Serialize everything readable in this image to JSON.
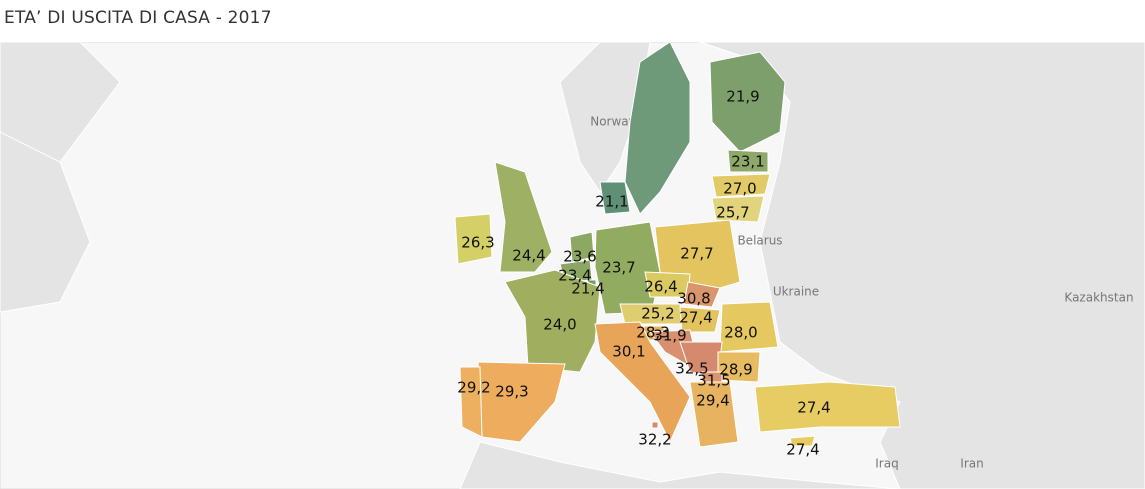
{
  "title": "ETA’ DI USCITA DI CASA - 2017",
  "places": [
    "Norway",
    "Belarus",
    "Ukraine",
    "Kazakhstan",
    "Iraq",
    "Iran"
  ],
  "regions": [
    {
      "label": "21,9",
      "color": "#7c9f6c"
    },
    {
      "label": "21,1",
      "color": "#5f8f74"
    },
    {
      "label": "23,1",
      "color": "#8ea86a"
    },
    {
      "label": "27,0",
      "color": "#e2cb66"
    },
    {
      "label": "25,7",
      "color": "#e1d47c"
    },
    {
      "label": "26,3",
      "color": "#d5cf68"
    },
    {
      "label": "24,4",
      "color": "#9db064"
    },
    {
      "label": "23,6",
      "color": "#8da862"
    },
    {
      "label": "23,4",
      "color": "#8aa662"
    },
    {
      "label": "21,4",
      "color": "#6f9a6c"
    },
    {
      "label": "23,7",
      "color": "#91ab60"
    },
    {
      "label": "27,7",
      "color": "#e3c45e"
    },
    {
      "label": "26,4",
      "color": "#dbca62"
    },
    {
      "label": "30,8",
      "color": "#d9956b"
    },
    {
      "label": "25,2",
      "color": "#dfcd70"
    },
    {
      "label": "27,4",
      "color": "#e3c35e"
    },
    {
      "label": "28,3",
      "color": "#e5b35f"
    },
    {
      "label": "31,9",
      "color": "#d8906e"
    },
    {
      "label": "24,0",
      "color": "#9fae5f"
    },
    {
      "label": "30,1",
      "color": "#e8a55a"
    },
    {
      "label": "28,0",
      "color": "#e6c860"
    },
    {
      "label": "32,5",
      "color": "#d58a6d"
    },
    {
      "label": "28,9",
      "color": "#e7bb62"
    },
    {
      "label": "31,5",
      "color": "#d9956c"
    },
    {
      "label": "29,4",
      "color": "#e8b360"
    },
    {
      "label": "29,3",
      "color": "#eeac5e"
    },
    {
      "label": "29,2",
      "color": "#ecb060"
    },
    {
      "label": "27,4",
      "color": "#e6cc63"
    },
    {
      "label": "32,2",
      "color": "#d88a6c"
    },
    {
      "label": "27,4",
      "color": "#e6cc63"
    }
  ]
}
